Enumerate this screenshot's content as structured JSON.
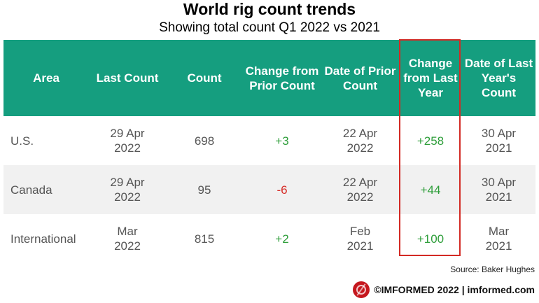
{
  "title": "World rig count trends",
  "subtitle": "Showing total count Q1 2022 vs 2021",
  "chart_data": {
    "type": "table",
    "title": "World rig count trends",
    "subtitle": "Showing total count Q1 2022 vs 2021",
    "columns": [
      "Area",
      "Last Count",
      "Count",
      "Change from Prior Count",
      "Date of Prior Count",
      "Change from Last Year",
      "Date of Last Year's Count"
    ],
    "rows": [
      [
        "U.S.",
        "29 Apr\n2022",
        "698",
        "+3",
        "22 Apr\n2022",
        "+258",
        "30 Apr\n2021"
      ],
      [
        "Canada",
        "29 Apr\n2022",
        "95",
        "-6",
        "22 Apr\n2022",
        "+44",
        "30 Apr\n2021"
      ],
      [
        "International",
        "Mar\n2022",
        "815",
        "+2",
        "Feb\n2021",
        "+100",
        "Mar\n2021"
      ]
    ],
    "highlighted_column": "Change from Last Year"
  },
  "source": "Source: Baker Hughes",
  "brand": "©IMFORMED 2022  | imformed.com",
  "colors": {
    "header": "#159e7f",
    "positive": "#2e9e3a",
    "negative": "#d62a25",
    "highlight_border": "#d32a24",
    "row_alt": "#f1f1f1"
  }
}
